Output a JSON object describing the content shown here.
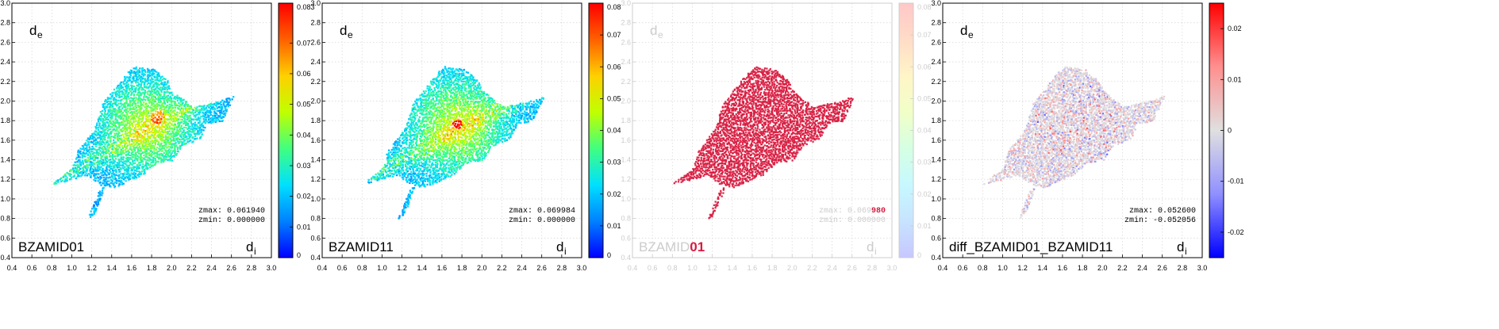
{
  "chart_data": [
    {
      "type": "heatmap",
      "x_ticks": [
        "0.4",
        "0.6",
        "0.8",
        "1.0",
        "1.2",
        "1.4",
        "1.6",
        "1.8",
        "2.0",
        "2.2",
        "2.4",
        "2.6",
        "2.8",
        "3.0"
      ],
      "y_ticks": [
        "0.4",
        "0.6",
        "0.8",
        "1.0",
        "1.2",
        "1.4",
        "1.6",
        "1.8",
        "2.0",
        "2.2",
        "2.4",
        "2.6",
        "2.8",
        "3.0"
      ],
      "xlim": [
        0.4,
        3.0
      ],
      "ylim": [
        0.4,
        3.0
      ],
      "xlabel_main": "d",
      "xlabel_sub": "i",
      "ylabel_main": "d",
      "ylabel_sub": "e",
      "name": "BZAMID01",
      "stats": [
        "zmax: 0.061940",
        "zmin: 0.000000"
      ],
      "colorbar": {
        "min": 0,
        "max": 0.083,
        "scheme": "rainbow",
        "ticks": [
          "0",
          "0.01",
          "0.02",
          "0.03",
          "0.04",
          "0.05",
          "0.06",
          "0.07",
          "0.083"
        ]
      },
      "grid": true,
      "style": "normal"
    },
    {
      "type": "heatmap",
      "x_ticks": [
        "0.4",
        "0.6",
        "0.8",
        "1.0",
        "1.2",
        "1.4",
        "1.6",
        "1.8",
        "2.0",
        "2.2",
        "2.4",
        "2.6",
        "2.8",
        "3.0"
      ],
      "y_ticks": [
        "0.4",
        "0.6",
        "0.8",
        "1.0",
        "1.2",
        "1.4",
        "1.6",
        "1.8",
        "2.0",
        "2.2",
        "2.4",
        "2.6",
        "2.8",
        "3.0"
      ],
      "xlim": [
        0.4,
        3.0
      ],
      "ylim": [
        0.4,
        3.0
      ],
      "xlabel_main": "d",
      "xlabel_sub": "i",
      "ylabel_main": "d",
      "ylabel_sub": "e",
      "name": "BZAMID11",
      "stats": [
        "zmax: 0.069984",
        "zmin: 0.000000"
      ],
      "colorbar": {
        "min": 0,
        "max": 0.08,
        "scheme": "rainbow",
        "ticks": [
          "0",
          "0.01",
          "0.02",
          "0.03",
          "0.04",
          "0.05",
          "0.06",
          "0.07",
          "0.08"
        ]
      },
      "grid": true,
      "style": "normal"
    },
    {
      "type": "heatmap",
      "x_ticks": [
        "0.4",
        "0.6",
        "0.8",
        "1.0",
        "1.2",
        "1.4",
        "1.6",
        "1.8",
        "2.0",
        "2.2",
        "2.4",
        "2.6",
        "2.8",
        "3.0"
      ],
      "y_ticks": [
        "0.4",
        "0.6",
        "0.8",
        "1.0",
        "1.2",
        "1.4",
        "1.6",
        "1.8",
        "2.0",
        "2.2",
        "2.4",
        "2.6",
        "2.8",
        "3.0"
      ],
      "xlim": [
        0.4,
        3.0
      ],
      "ylim": [
        0.4,
        3.0
      ],
      "xlabel_main": "d",
      "xlabel_sub": "i",
      "ylabel_main": "d",
      "ylabel_sub": "e",
      "name": "BZAMID01",
      "stats": [
        "zmax: 0.069980",
        "zmin: 0.000000"
      ],
      "colorbar": {
        "min": 0,
        "max": 0.08,
        "scheme": "rainbow",
        "ticks": [
          "0",
          "0.01",
          "0.02",
          "0.03",
          "0.04",
          "0.05",
          "0.06",
          "0.07",
          "0.08"
        ]
      },
      "grid": true,
      "style": "faded"
    },
    {
      "type": "heatmap",
      "x_ticks": [
        "0.4",
        "0.6",
        "0.8",
        "1.0",
        "1.2",
        "1.4",
        "1.6",
        "1.8",
        "2.0",
        "2.2",
        "2.4",
        "2.6",
        "2.8",
        "3.0"
      ],
      "y_ticks": [
        "0.4",
        "0.6",
        "0.8",
        "1.0",
        "1.2",
        "1.4",
        "1.6",
        "1.8",
        "2.0",
        "2.2",
        "2.4",
        "2.6",
        "2.8",
        "3.0"
      ],
      "xlim": [
        0.4,
        3.0
      ],
      "ylim": [
        0.4,
        3.0
      ],
      "xlabel_main": "d",
      "xlabel_sub": "i",
      "ylabel_main": "d",
      "ylabel_sub": "e",
      "name": "diff_BZAMID01_BZAMID11",
      "stats": [
        "zmax: 0.052600",
        "zmin: -0.052056"
      ],
      "colorbar": {
        "min": -0.025,
        "max": 0.025,
        "scheme": "diverging",
        "ticks": [
          "-0.02",
          "-0.01",
          "0",
          "0.01",
          "0.02"
        ]
      },
      "grid": true,
      "style": "diff"
    }
  ],
  "colors": {
    "rainbow": [
      "#0000ff",
      "#0080ff",
      "#00e0ff",
      "#40ff80",
      "#c0ff00",
      "#ffd000",
      "#ff6000",
      "#ff0000"
    ],
    "diverging": [
      "#0000ff",
      "#9090ff",
      "#e0e0e0",
      "#ff9090",
      "#ff0000"
    ],
    "faded_fill": "#d81b40",
    "fingerprint_shape": [
      [
        0.78,
        1.15
      ],
      [
        1.0,
        1.32
      ],
      [
        1.05,
        1.5
      ],
      [
        1.22,
        1.72
      ],
      [
        1.3,
        1.98
      ],
      [
        1.55,
        2.3
      ],
      [
        1.62,
        2.36
      ],
      [
        1.82,
        2.33
      ],
      [
        1.95,
        2.22
      ],
      [
        2.0,
        2.12
      ],
      [
        2.2,
        1.95
      ],
      [
        2.45,
        2.0
      ],
      [
        2.62,
        2.06
      ],
      [
        2.5,
        1.8
      ],
      [
        2.35,
        1.78
      ],
      [
        2.28,
        1.62
      ],
      [
        2.1,
        1.55
      ],
      [
        2.0,
        1.4
      ],
      [
        1.85,
        1.38
      ],
      [
        1.7,
        1.25
      ],
      [
        1.55,
        1.18
      ],
      [
        1.42,
        1.12
      ],
      [
        1.3,
        1.15
      ],
      [
        1.25,
        1.05
      ],
      [
        1.15,
        0.8
      ],
      [
        1.22,
        0.85
      ],
      [
        1.32,
        1.12
      ],
      [
        1.15,
        1.25
      ],
      [
        0.9,
        1.18
      ],
      [
        0.78,
        1.15
      ]
    ]
  }
}
